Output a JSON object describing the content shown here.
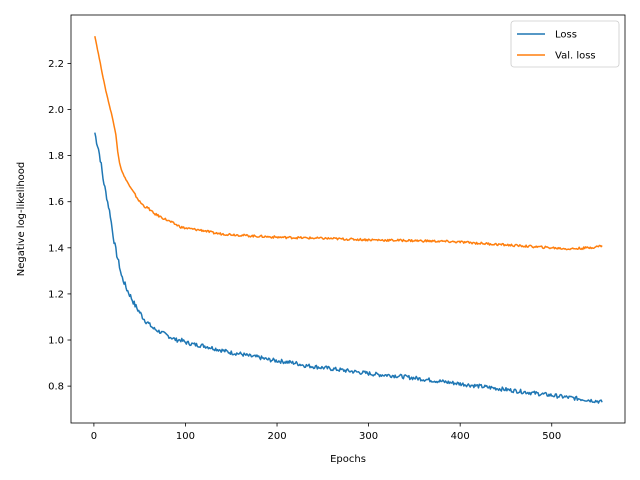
{
  "chart_data": {
    "type": "line",
    "xlabel": "Epochs",
    "ylabel": "Negative log-likelihood",
    "xlim": [
      -25,
      580
    ],
    "ylim": [
      0.64,
      2.41
    ],
    "xticks": [
      0,
      100,
      200,
      300,
      400,
      500
    ],
    "yticks": [
      0.8,
      1.0,
      1.2,
      1.4,
      1.6,
      1.8,
      2.0,
      2.2
    ],
    "ytick_labels": [
      "0.8",
      "1.0",
      "1.2",
      "1.4",
      "1.6",
      "1.8",
      "2.0",
      "2.2"
    ],
    "xtick_labels": [
      "0",
      "100",
      "200",
      "300",
      "400",
      "500"
    ],
    "legend_position": "top-right",
    "series": [
      {
        "name": "Loss",
        "color": "#1f77b4",
        "x": [
          1,
          3,
          5,
          8,
          10,
          12,
          15,
          18,
          20,
          22,
          25,
          28,
          30,
          33,
          36,
          40,
          45,
          50,
          55,
          60,
          65,
          70,
          75,
          80,
          85,
          90,
          95,
          100,
          110,
          120,
          130,
          140,
          150,
          160,
          170,
          180,
          190,
          200,
          210,
          220,
          230,
          240,
          250,
          260,
          270,
          280,
          290,
          300,
          310,
          320,
          330,
          340,
          350,
          360,
          370,
          380,
          390,
          400,
          410,
          420,
          430,
          440,
          450,
          460,
          470,
          480,
          490,
          500,
          510,
          520,
          530,
          540,
          550,
          555
        ],
        "y": [
          1.9,
          1.86,
          1.83,
          1.76,
          1.7,
          1.66,
          1.6,
          1.54,
          1.48,
          1.43,
          1.37,
          1.32,
          1.28,
          1.25,
          1.22,
          1.19,
          1.15,
          1.12,
          1.09,
          1.07,
          1.05,
          1.04,
          1.03,
          1.02,
          1.01,
          1.0,
          1.0,
          0.99,
          0.98,
          0.975,
          0.965,
          0.955,
          0.945,
          0.94,
          0.93,
          0.925,
          0.915,
          0.91,
          0.905,
          0.9,
          0.89,
          0.885,
          0.88,
          0.875,
          0.87,
          0.865,
          0.86,
          0.855,
          0.85,
          0.848,
          0.845,
          0.84,
          0.835,
          0.83,
          0.825,
          0.82,
          0.815,
          0.81,
          0.805,
          0.8,
          0.795,
          0.79,
          0.785,
          0.78,
          0.775,
          0.77,
          0.765,
          0.76,
          0.755,
          0.75,
          0.745,
          0.74,
          0.735,
          0.73
        ]
      },
      {
        "name": "Val. loss",
        "color": "#ff7f0e",
        "x": [
          1,
          3,
          5,
          8,
          10,
          12,
          15,
          18,
          20,
          22,
          24,
          26,
          28,
          30,
          33,
          36,
          40,
          45,
          50,
          55,
          60,
          65,
          70,
          75,
          80,
          85,
          90,
          95,
          100,
          110,
          120,
          130,
          140,
          150,
          160,
          170,
          180,
          190,
          200,
          220,
          240,
          260,
          280,
          300,
          320,
          340,
          360,
          380,
          400,
          420,
          440,
          460,
          480,
          500,
          520,
          540,
          550,
          555
        ],
        "y": [
          2.32,
          2.28,
          2.24,
          2.18,
          2.14,
          2.1,
          2.05,
          2.0,
          1.97,
          1.93,
          1.89,
          1.82,
          1.77,
          1.74,
          1.71,
          1.69,
          1.66,
          1.63,
          1.6,
          1.58,
          1.57,
          1.55,
          1.54,
          1.53,
          1.52,
          1.51,
          1.5,
          1.49,
          1.485,
          1.48,
          1.475,
          1.465,
          1.46,
          1.458,
          1.455,
          1.452,
          1.45,
          1.448,
          1.446,
          1.444,
          1.442,
          1.44,
          1.437,
          1.435,
          1.433,
          1.432,
          1.43,
          1.428,
          1.425,
          1.42,
          1.415,
          1.41,
          1.405,
          1.4,
          1.395,
          1.4,
          1.405,
          1.41
        ]
      }
    ]
  }
}
